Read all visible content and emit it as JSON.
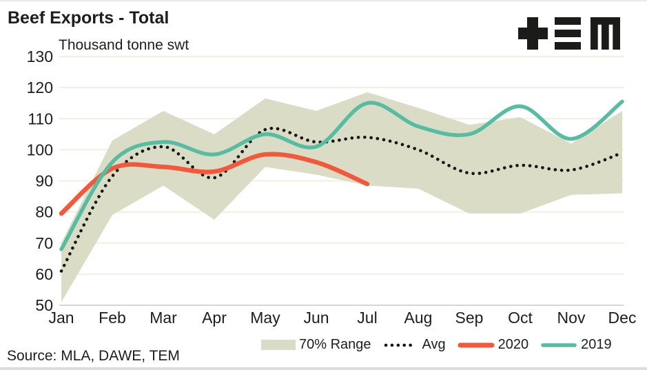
{
  "page": {
    "source_note": "Source: MLA, DAWE, TEM",
    "logo_name": "TEM"
  },
  "colors": {
    "text": "#1d1d1b",
    "band": "#dbdcc5",
    "gridline": "#f0efe1",
    "axis_line": "#d7d7d5",
    "avg_dots": "#161616",
    "line_2020": "#f4583a",
    "line_2019": "#57bda2",
    "logo": "#1b1b19"
  },
  "legend": {
    "items": [
      {
        "label": "70% Range",
        "marker": "band-swatch"
      },
      {
        "label": "Avg",
        "marker": "dotted-line"
      },
      {
        "label": "2020",
        "marker": "orange-line"
      },
      {
        "label": "2019",
        "marker": "teal-line"
      }
    ]
  },
  "chart_data": {
    "type": "line",
    "title": "Beef Exports - Total",
    "ylabel": "Thousand tonne swt",
    "categories": [
      "Jan",
      "Feb",
      "Mar",
      "Apr",
      "May",
      "Jun",
      "Jul",
      "Aug",
      "Sep",
      "Oct",
      "Nov",
      "Dec"
    ],
    "ylim": [
      50,
      130
    ],
    "yticks": [
      130,
      120,
      110,
      100,
      90,
      80,
      70,
      60,
      50
    ],
    "grid": true,
    "legend_position": "bottom",
    "series": [
      {
        "name": "70% Range",
        "type": "band",
        "color": "#dbdcc5",
        "upper": [
          70,
          103,
          112.5,
          105,
          116.5,
          112.5,
          118.5,
          113.5,
          108,
          110.5,
          102,
          112.5
        ],
        "lower": [
          51,
          79,
          88.5,
          77.5,
          94.5,
          92,
          88.5,
          87.5,
          79.5,
          79.5,
          85.5,
          86
        ]
      },
      {
        "name": "Avg",
        "type": "line",
        "style": "dotted",
        "color": "#161616",
        "values": [
          61,
          91.5,
          101,
          91,
          106.5,
          102.5,
          104,
          100,
          92.5,
          95,
          93.5,
          99
        ]
      },
      {
        "name": "2020",
        "type": "line",
        "style": "solid",
        "color": "#f4583a",
        "values": [
          79.5,
          94,
          94.5,
          93,
          98.5,
          96,
          89,
          null,
          null,
          null,
          null,
          null
        ]
      },
      {
        "name": "2019",
        "type": "line",
        "style": "solid",
        "color": "#57bda2",
        "values": [
          68,
          96,
          102.5,
          98.5,
          105,
          101,
          115,
          107.5,
          105,
          114,
          103.5,
          115.5
        ]
      }
    ]
  }
}
